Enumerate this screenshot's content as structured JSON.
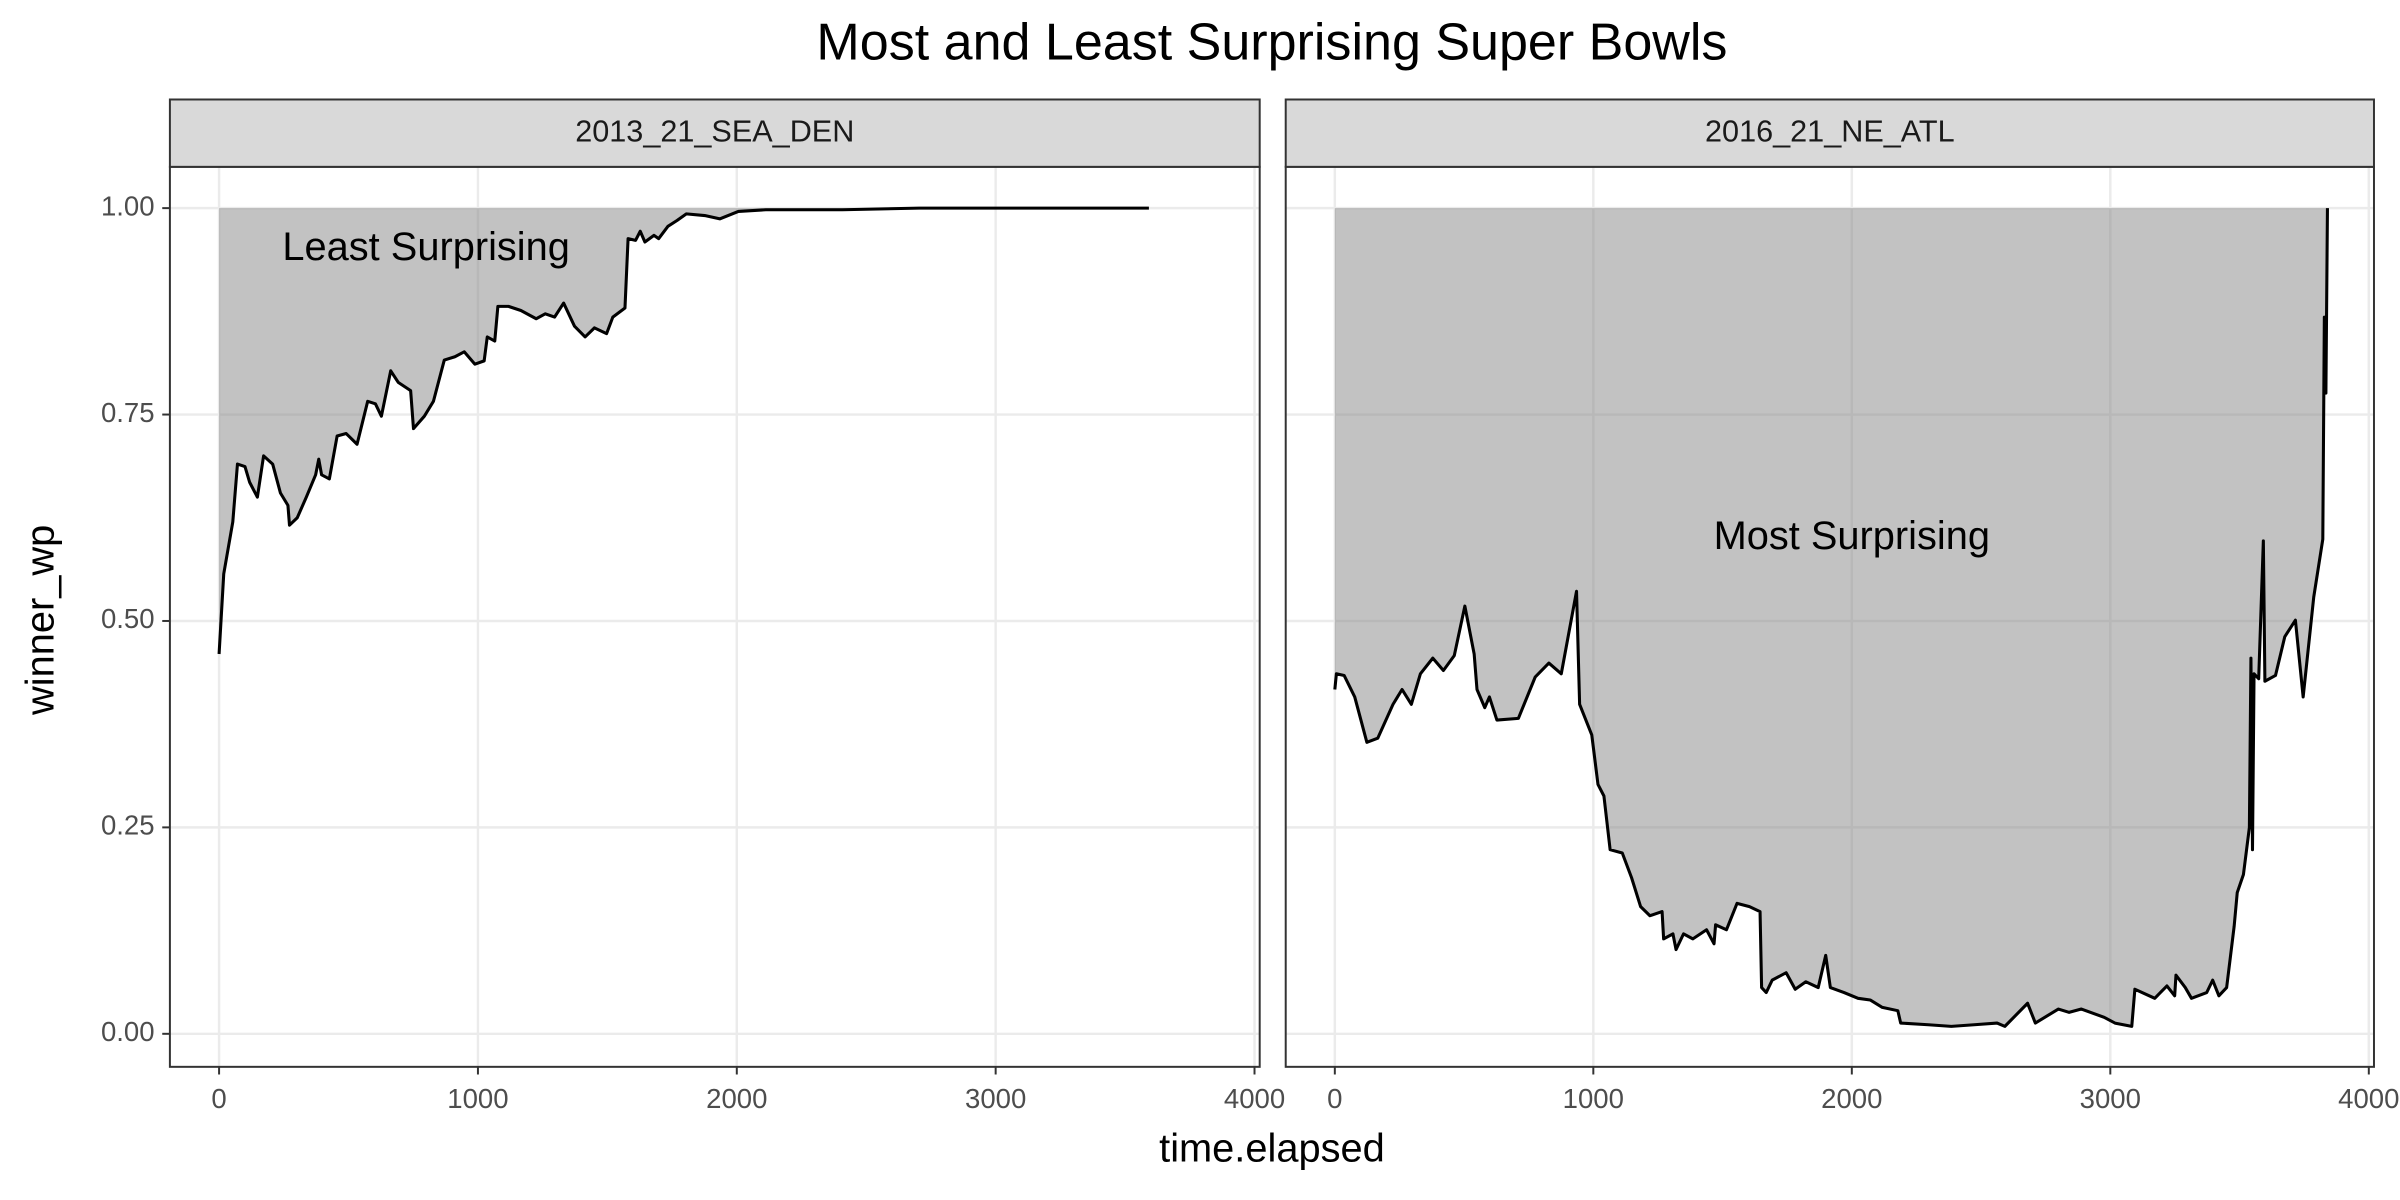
{
  "title": "Most and Least Surprising Super Bowls",
  "x_label": "time.elapsed",
  "y_label": "winner_wp",
  "chart_data": [
    {
      "type": "area",
      "facet": "2013_21_SEA_DEN",
      "color": "#000000",
      "fill": "rgba(128,128,128,0.48)",
      "grid": true,
      "annotation": {
        "text": "Least Surprising",
        "x": 800,
        "y": 0.95
      },
      "xlim": [
        -190,
        4020
      ],
      "ylim": [
        -0.04,
        1.05
      ],
      "xticks": [
        0,
        1000,
        2000,
        3000,
        4000
      ],
      "yticks": [
        {
          "value": 0,
          "label": "0.00"
        },
        0.25,
        {
          "value": 0.5,
          "label": "0.50"
        },
        0.75,
        {
          "value": 1,
          "label": "1.00"
        }
      ],
      "x": [
        0,
        18,
        53,
        71,
        100,
        118,
        148,
        172,
        207,
        237,
        266,
        272,
        302,
        337,
        373,
        385,
        396,
        426,
        456,
        491,
        533,
        574,
        604,
        627,
        663,
        692,
        740,
        751,
        793,
        828,
        870,
        911,
        947,
        988,
        1024,
        1036,
        1065,
        1077,
        1118,
        1166,
        1225,
        1260,
        1296,
        1331,
        1373,
        1414,
        1450,
        1497,
        1521,
        1568,
        1580,
        1609,
        1627,
        1645,
        1680,
        1698,
        1734,
        1769,
        1805,
        1876,
        1935,
        2006,
        2112,
        2408,
        2704,
        3592
      ],
      "values": [
        0.46,
        0.557,
        0.62,
        0.69,
        0.687,
        0.668,
        0.65,
        0.7,
        0.69,
        0.655,
        0.64,
        0.616,
        0.625,
        0.65,
        0.677,
        0.696,
        0.677,
        0.672,
        0.724,
        0.727,
        0.714,
        0.766,
        0.763,
        0.748,
        0.803,
        0.789,
        0.779,
        0.733,
        0.748,
        0.766,
        0.816,
        0.82,
        0.826,
        0.811,
        0.815,
        0.844,
        0.839,
        0.881,
        0.881,
        0.876,
        0.866,
        0.872,
        0.868,
        0.885,
        0.857,
        0.844,
        0.855,
        0.848,
        0.868,
        0.879,
        0.963,
        0.961,
        0.972,
        0.959,
        0.967,
        0.963,
        0.978,
        0.985,
        0.993,
        0.991,
        0.987,
        0.996,
        0.998,
        0.998,
        1.0,
        1.0
      ]
    },
    {
      "type": "area",
      "facet": "2016_21_NE_ATL",
      "color": "#000000",
      "fill": "rgba(128,128,128,0.48)",
      "grid": true,
      "annotation": {
        "text": "Most Surprising",
        "x": 2000,
        "y": 0.6
      },
      "xlim": [
        -190,
        4020
      ],
      "ylim": [
        -0.04,
        1.05
      ],
      "xticks": [
        0,
        1000,
        2000,
        3000,
        4000
      ],
      "yticks": [
        {
          "value": 0,
          "label": "0.00"
        },
        0.25,
        {
          "value": 0.5,
          "label": "0.50"
        },
        0.75,
        {
          "value": 1,
          "label": "1.00"
        }
      ],
      "x": [
        0,
        6,
        36,
        77,
        124,
        166,
        225,
        260,
        296,
        331,
        379,
        420,
        462,
        503,
        539,
        550,
        580,
        598,
        627,
        710,
        775,
        828,
        876,
        935,
        947,
        994,
        1018,
        1041,
        1065,
        1112,
        1148,
        1183,
        1219,
        1266,
        1272,
        1308,
        1320,
        1349,
        1385,
        1438,
        1467,
        1473,
        1515,
        1556,
        1604,
        1645,
        1651,
        1669,
        1692,
        1746,
        1781,
        1822,
        1870,
        1899,
        1917,
        1970,
        2024,
        2071,
        2118,
        2178,
        2189,
        2296,
        2385,
        2473,
        2562,
        2592,
        2680,
        2710,
        2799,
        2840,
        2888,
        2976,
        3018,
        3083,
        3095,
        3172,
        3219,
        3249,
        3254,
        3290,
        3314,
        3373,
        3396,
        3420,
        3450,
        3479,
        3491,
        3515,
        3538,
        3544,
        3550,
        3556,
        3574,
        3592,
        3598,
        3639,
        3675,
        3716,
        3746,
        3787,
        3822,
        3828,
        3834,
        3840
      ],
      "values": [
        0.417,
        0.436,
        0.434,
        0.408,
        0.353,
        0.358,
        0.399,
        0.417,
        0.399,
        0.436,
        0.455,
        0.44,
        0.458,
        0.518,
        0.46,
        0.417,
        0.395,
        0.408,
        0.38,
        0.382,
        0.432,
        0.449,
        0.436,
        0.536,
        0.399,
        0.362,
        0.302,
        0.288,
        0.223,
        0.219,
        0.189,
        0.154,
        0.143,
        0.148,
        0.115,
        0.121,
        0.102,
        0.121,
        0.115,
        0.126,
        0.109,
        0.132,
        0.126,
        0.158,
        0.154,
        0.148,
        0.056,
        0.05,
        0.065,
        0.074,
        0.054,
        0.063,
        0.056,
        0.095,
        0.056,
        0.05,
        0.043,
        0.041,
        0.032,
        0.028,
        0.013,
        0.011,
        0.009,
        0.011,
        0.013,
        0.009,
        0.037,
        0.013,
        0.03,
        0.026,
        0.03,
        0.02,
        0.013,
        0.009,
        0.054,
        0.043,
        0.058,
        0.046,
        0.071,
        0.056,
        0.043,
        0.05,
        0.065,
        0.046,
        0.056,
        0.13,
        0.171,
        0.193,
        0.25,
        0.455,
        0.223,
        0.436,
        0.43,
        0.597,
        0.427,
        0.434,
        0.481,
        0.501,
        0.408,
        0.529,
        0.599,
        0.868,
        0.776,
        1.0
      ]
    }
  ]
}
